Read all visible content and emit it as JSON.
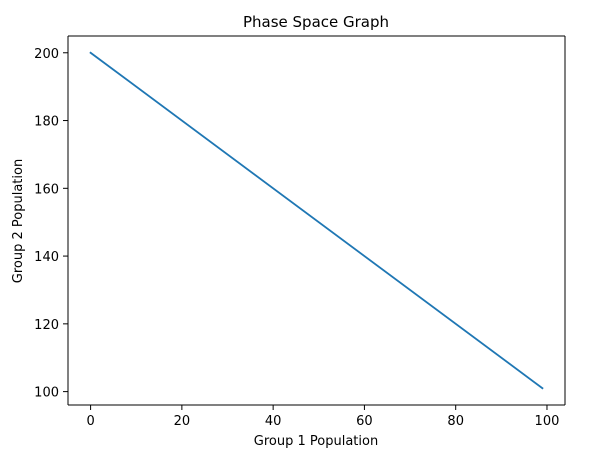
{
  "chart_data": {
    "type": "line",
    "title": "Phase Space Graph",
    "xlabel": "Group 1 Population",
    "ylabel": "Group 2 Population",
    "xlim": [
      -4.95,
      103.95
    ],
    "ylim": [
      96.05,
      204.95
    ],
    "xticks": [
      0,
      20,
      40,
      60,
      80,
      100
    ],
    "yticks": [
      100,
      120,
      140,
      160,
      180,
      200
    ],
    "xtick_labels": [
      "0",
      "20",
      "40",
      "60",
      "80",
      "100"
    ],
    "ytick_labels": [
      "100",
      "120",
      "140",
      "160",
      "180",
      "200"
    ],
    "grid": false,
    "series": [
      {
        "color": "#1f77b4",
        "x": [
          0,
          99
        ],
        "y": [
          200,
          101
        ]
      }
    ]
  }
}
